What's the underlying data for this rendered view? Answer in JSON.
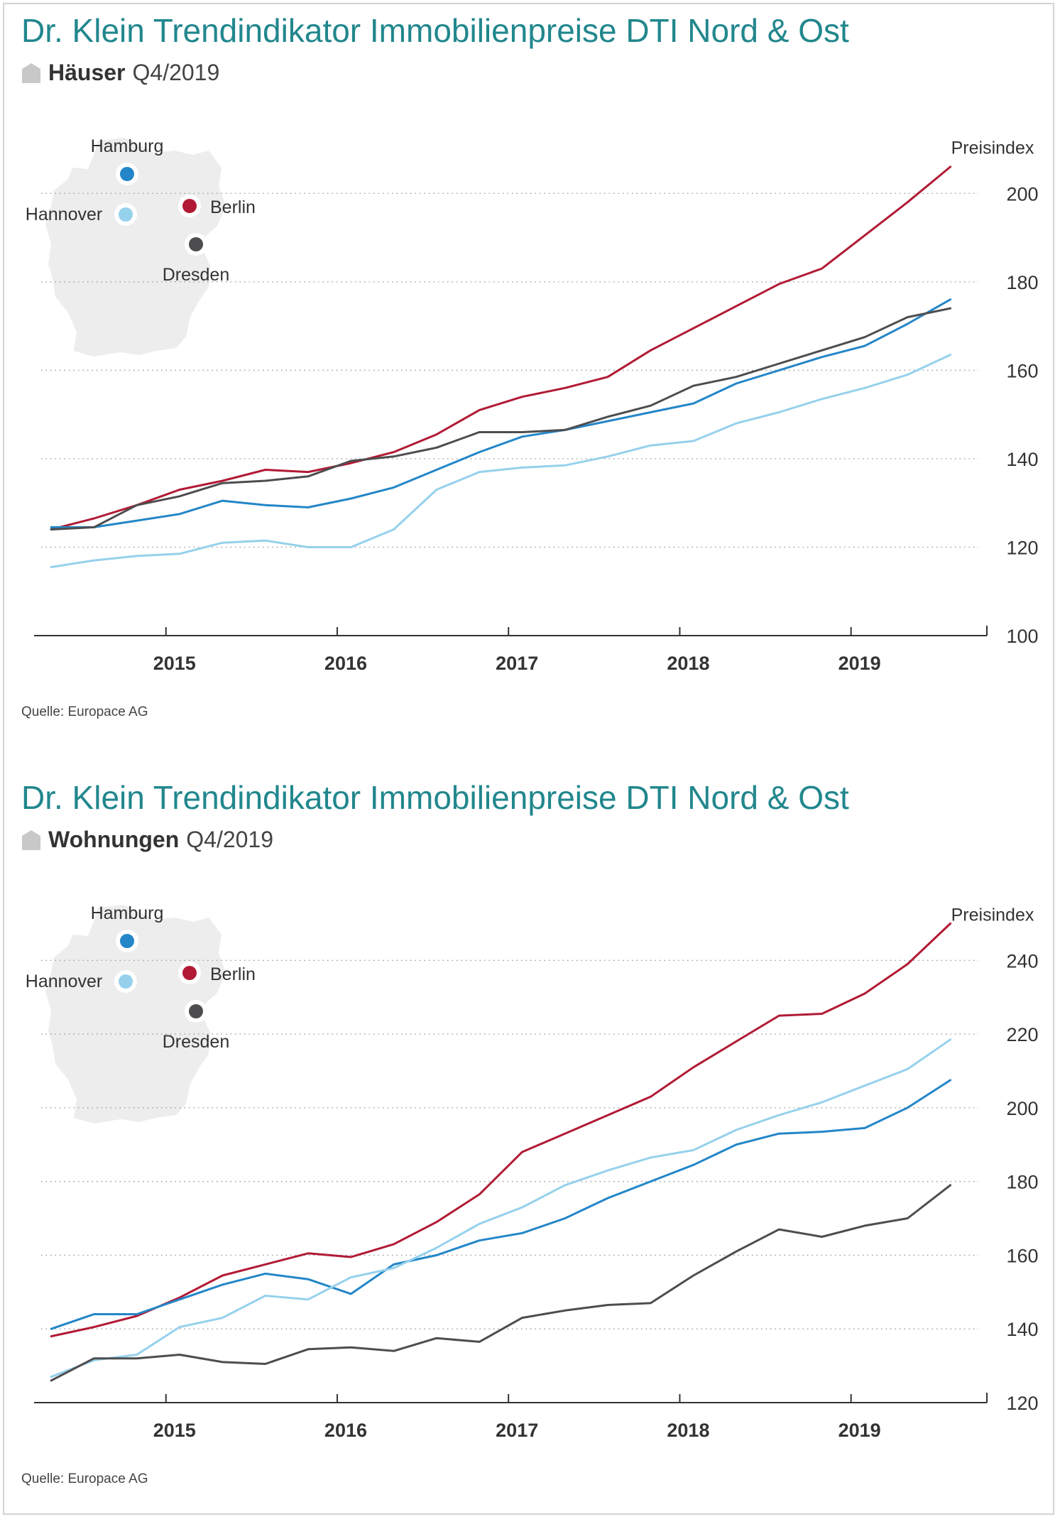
{
  "source_label": "Quelle: Europace AG",
  "colors": {
    "title": "#21878d",
    "berlin": "#b11a34",
    "hamburg": "#2386c8",
    "hannover": "#96d1ec",
    "dresden": "#4d4d4f",
    "map": "#ededed"
  },
  "map_cities": [
    {
      "name": "Hamburg",
      "color": "#2386c8"
    },
    {
      "name": "Hannover",
      "color": "#96d1ec"
    },
    {
      "name": "Berlin",
      "color": "#b11a34"
    },
    {
      "name": "Dresden",
      "color": "#4d4d4f"
    }
  ],
  "chart_data": [
    {
      "type": "line",
      "title": "Dr. Klein Trendindikator Immobilienpreise DTI Nord & Ost",
      "subtitle_bold": "Häuser",
      "subtitle_rest": "Q4/2019",
      "ylabel": "Preisindex",
      "ylim": [
        100,
        210
      ],
      "yticks": [
        100,
        120,
        140,
        160,
        180,
        200
      ],
      "gridlines": [
        120,
        140,
        160,
        180,
        200
      ],
      "xlim": [
        2014.23,
        2019.76
      ],
      "xticks": [
        2015,
        2016,
        2017,
        2018,
        2019
      ],
      "xtick_labels": [
        "2015",
        "2016",
        "2017",
        "2018",
        "2019"
      ],
      "x": [
        2014.33,
        2014.58,
        2014.83,
        2015.08,
        2015.33,
        2015.58,
        2015.83,
        2016.08,
        2016.33,
        2016.58,
        2016.83,
        2017.08,
        2017.33,
        2017.58,
        2017.83,
        2018.08,
        2018.33,
        2018.58,
        2018.83,
        2019.08,
        2019.33,
        2019.58
      ],
      "series": [
        {
          "name": "Berlin",
          "color": "#b11a34",
          "values": [
            124,
            126.5,
            129.5,
            133,
            135,
            137.5,
            137,
            139,
            141.5,
            145.5,
            151,
            154,
            156,
            158.5,
            164.5,
            169.5,
            174.5,
            179.5,
            183,
            190.5,
            198,
            206
          ]
        },
        {
          "name": "Hamburg",
          "color": "#2386c8",
          "values": [
            124.5,
            124.5,
            126,
            127.5,
            130.5,
            129.5,
            129,
            131,
            133.5,
            137.5,
            141.5,
            145,
            146.5,
            148.5,
            150.5,
            152.5,
            157,
            160,
            163,
            165.5,
            170.5,
            176
          ]
        },
        {
          "name": "Hannover",
          "color": "#96d1ec",
          "values": [
            115.5,
            117,
            118,
            118.5,
            121,
            121.5,
            120,
            120,
            124,
            133,
            137,
            138,
            138.5,
            140.5,
            143,
            144,
            148,
            150.5,
            153.5,
            156,
            159,
            163.5
          ]
        },
        {
          "name": "Dresden",
          "color": "#4d4d4f",
          "values": [
            124,
            124.5,
            129.5,
            131.5,
            134.5,
            135,
            136,
            139.5,
            140.5,
            142.5,
            146,
            146,
            146.5,
            149.5,
            152,
            156.5,
            158.5,
            161.5,
            164.5,
            167.5,
            172,
            174
          ]
        }
      ]
    },
    {
      "type": "line",
      "title": "Dr. Klein Trendindikator Immobilienpreise DTI Nord & Ost",
      "subtitle_bold": "Wohnungen",
      "subtitle_rest": "Q4/2019",
      "ylabel": "Preisindex",
      "ylim": [
        120,
        252
      ],
      "yticks": [
        120,
        140,
        160,
        180,
        200,
        220,
        240
      ],
      "gridlines": [
        140,
        160,
        180,
        200,
        220,
        240
      ],
      "xlim": [
        2014.23,
        2019.76
      ],
      "xticks": [
        2015,
        2016,
        2017,
        2018,
        2019
      ],
      "xtick_labels": [
        "2015",
        "2016",
        "2017",
        "2018",
        "2019"
      ],
      "x": [
        2014.33,
        2014.58,
        2014.83,
        2015.08,
        2015.33,
        2015.58,
        2015.83,
        2016.08,
        2016.33,
        2016.58,
        2016.83,
        2017.08,
        2017.33,
        2017.58,
        2017.83,
        2018.08,
        2018.33,
        2018.58,
        2018.83,
        2019.08,
        2019.33,
        2019.58
      ],
      "series": [
        {
          "name": "Berlin",
          "color": "#b11a34",
          "values": [
            138,
            140.5,
            143.5,
            148.5,
            154.5,
            157.5,
            160.5,
            159.5,
            163,
            169,
            176.5,
            188,
            193,
            198,
            203,
            211,
            218,
            225,
            225.5,
            231,
            239,
            250
          ]
        },
        {
          "name": "Hamburg",
          "color": "#2386c8",
          "values": [
            140,
            144,
            144,
            148,
            152,
            155,
            153.5,
            149.5,
            157.5,
            160,
            164,
            166,
            170,
            175.5,
            180,
            184.5,
            190,
            193,
            193.5,
            194.5,
            200,
            207.5
          ]
        },
        {
          "name": "Hannover",
          "color": "#96d1ec",
          "values": [
            127,
            131.5,
            133,
            140.5,
            143,
            149,
            148,
            154,
            156.5,
            162,
            168.5,
            173,
            179,
            183,
            186.5,
            188.5,
            194,
            198,
            201.5,
            206,
            210.5,
            218.5
          ]
        },
        {
          "name": "Dresden",
          "color": "#4d4d4f",
          "values": [
            126,
            132,
            132,
            133,
            131,
            130.5,
            134.5,
            135,
            134,
            137.5,
            136.5,
            143,
            145,
            146.5,
            147,
            154.5,
            161,
            167,
            165,
            168,
            170,
            179
          ]
        }
      ]
    }
  ]
}
